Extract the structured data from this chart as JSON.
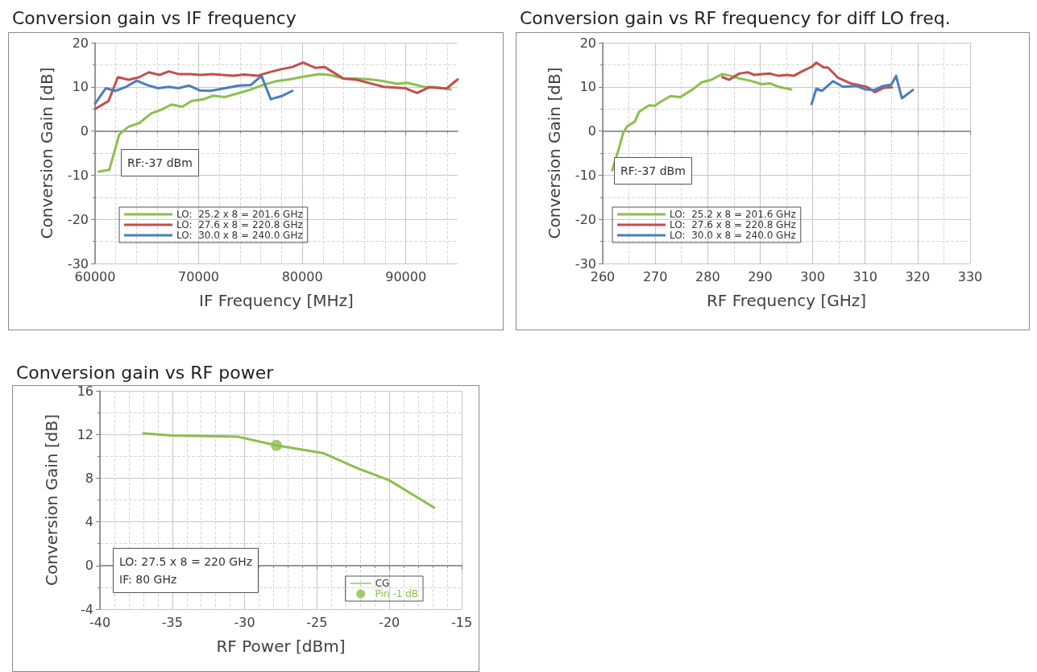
{
  "chart_data": [
    {
      "type": "line",
      "title": "Conversion gain vs IF frequency",
      "xlabel": "IF Frequency [MHz]",
      "ylabel": "Conversion Gain [dB]",
      "annotations": [
        "RF:-37 dBm"
      ],
      "xlim": [
        60000,
        95000
      ],
      "xticks": [
        60000,
        70000,
        80000,
        90000
      ],
      "ylim": [
        -30,
        20
      ],
      "yticks": [
        -30,
        -20,
        -10,
        0,
        10,
        20
      ],
      "grid": true,
      "legend": "bottom left",
      "marker": "none",
      "line_style": "solid",
      "series": [
        {
          "name": "LO:  25.2 x 8 = 201.6 GHz",
          "color": "#8cbf4e",
          "x": [
            60340,
            61370,
            62330,
            63240,
            64270,
            65440,
            66350,
            67380,
            68420,
            69330,
            70490,
            71400,
            72560,
            73730,
            74900,
            76190,
            77490,
            78780,
            80080,
            81630,
            82670,
            83960,
            85250,
            86550,
            87850,
            89140,
            90180,
            91740,
            93030,
            94330
          ],
          "values": [
            -9.2,
            -8.8,
            -0.8,
            1.0,
            1.8,
            4.0,
            4.8,
            6.0,
            5.5,
            6.8,
            7.2,
            8.0,
            7.7,
            8.5,
            9.3,
            10.4,
            11.3,
            11.7,
            12.3,
            12.9,
            12.7,
            11.9,
            11.9,
            11.7,
            11.3,
            10.7,
            10.9,
            10.0,
            9.9,
            9.4
          ]
        },
        {
          "name": "LO:  27.6 x 8 = 220.8 GHz",
          "color": "#c0504d",
          "x": [
            60000,
            61300,
            62200,
            63240,
            64270,
            65180,
            66220,
            67120,
            68040,
            69200,
            70230,
            71270,
            72300,
            73340,
            74380,
            75670,
            76970,
            78000,
            79040,
            80080,
            81240,
            82150,
            83960,
            85250,
            86550,
            87850,
            89920,
            91090,
            92230,
            93910,
            95000
          ],
          "values": [
            5.0,
            6.8,
            12.2,
            11.6,
            12.2,
            13.3,
            12.7,
            13.5,
            12.9,
            12.9,
            12.7,
            12.9,
            12.7,
            12.5,
            12.8,
            12.5,
            13.4,
            14.0,
            14.5,
            15.5,
            14.3,
            14.5,
            11.9,
            11.6,
            10.8,
            10.0,
            9.7,
            8.6,
            9.9,
            9.6,
            11.7
          ]
        },
        {
          "name": "LO:  30.0 x 8 = 240.0 GHz",
          "color": "#4a7ebb",
          "x": [
            60000,
            61040,
            61950,
            62990,
            64020,
            65050,
            66090,
            67120,
            68040,
            69070,
            70100,
            71140,
            72300,
            73860,
            75020,
            76060,
            76960,
            78000,
            79040
          ],
          "values": [
            6.2,
            9.7,
            9.1,
            10.0,
            11.4,
            10.4,
            9.7,
            10.0,
            9.7,
            10.3,
            9.2,
            9.1,
            9.6,
            10.3,
            10.4,
            12.5,
            7.2,
            7.9,
            9.1
          ]
        }
      ]
    },
    {
      "type": "line",
      "title": "Conversion gain vs RF frequency for diff LO freq.",
      "xlabel": "RF Frequency [GHz]",
      "ylabel": "Conversion Gain [dB]",
      "annotations": [
        "RF:-37 dBm"
      ],
      "xlim": [
        260,
        330
      ],
      "xticks": [
        260,
        270,
        280,
        290,
        300,
        310,
        320,
        330
      ],
      "ylim": [
        -30,
        20
      ],
      "yticks": [
        -30,
        -20,
        -10,
        0,
        10,
        20
      ],
      "grid": true,
      "legend": "bottom left",
      "marker": "none",
      "line_style": "solid",
      "series": [
        {
          "name": "LO:  25.2 x 8 = 201.6 GHz",
          "color": "#8cbf4e",
          "x": [
            261.8,
            263.1,
            263.9,
            264.7,
            266.1,
            266.9,
            268.8,
            269.9,
            271.0,
            272.9,
            274.8,
            277.0,
            278.8,
            280.7,
            282.8,
            284.4,
            286.0,
            288.1,
            290.3,
            291.9,
            293.5,
            295.9
          ],
          "values": [
            -8.9,
            -3.9,
            -0.4,
            1.1,
            2.1,
            4.3,
            5.8,
            5.7,
            6.6,
            7.9,
            7.7,
            9.3,
            11.0,
            11.6,
            12.9,
            12.5,
            11.9,
            11.4,
            10.6,
            10.8,
            10.0,
            9.4
          ]
        },
        {
          "name": "LO:  27.6 x 8 = 220.8 GHz",
          "color": "#c0504d",
          "x": [
            282.8,
            284.1,
            286.0,
            287.6,
            288.9,
            290.3,
            291.9,
            293.5,
            295.1,
            296.4,
            298.1,
            299.9,
            300.7,
            302.1,
            302.9,
            304.8,
            307.2,
            310.3,
            311.9,
            313.5,
            315.1
          ],
          "values": [
            12.2,
            11.6,
            13.0,
            13.3,
            12.7,
            12.9,
            13.0,
            12.5,
            12.7,
            12.5,
            13.6,
            14.6,
            15.5,
            14.4,
            14.4,
            12.1,
            10.8,
            10.0,
            8.8,
            9.8,
            9.9
          ]
        },
        {
          "name": "LO:  30.0 x 8 = 240.0 GHz",
          "color": "#4a7ebb",
          "x": [
            299.8,
            300.7,
            301.8,
            303.9,
            305.8,
            308.3,
            310.1,
            311.8,
            313.4,
            315.0,
            315.9,
            317.0,
            319.1
          ],
          "values": [
            6.1,
            9.6,
            9.1,
            11.3,
            10.0,
            10.2,
            9.4,
            9.3,
            10.2,
            10.5,
            12.5,
            7.4,
            9.3
          ]
        }
      ]
    },
    {
      "type": "line",
      "title": "Conversion gain vs RF power",
      "xlabel": "RF Power [dBm]",
      "ylabel": "Conversion Gain [dB]",
      "annotations": [
        "LO: 27.5 x 8 = 220 GHz",
        "IF: 80 GHz"
      ],
      "xlim": [
        -40,
        -15
      ],
      "xticks": [
        -40,
        -35,
        -30,
        -25,
        -20,
        -15
      ],
      "ylim": [
        -4,
        16
      ],
      "yticks": [
        -4,
        0,
        4,
        8,
        12,
        16
      ],
      "grid": true,
      "legend": "bottom right",
      "marker": "none",
      "line_style": "solid",
      "series": [
        {
          "name": "CG",
          "color": "#8cbf4e",
          "x": [
            -37.0,
            -35.0,
            -30.5,
            -27.8,
            -24.6,
            -22.2,
            -20.0,
            -16.9
          ],
          "values": [
            12.1,
            11.9,
            11.8,
            11.0,
            10.3,
            8.9,
            7.8,
            5.3
          ]
        },
        {
          "name": "Pin -1 dB",
          "type": "scatter",
          "marker": "circle",
          "color": "#8cbf4e",
          "x": [
            -27.8
          ],
          "values": [
            11.0
          ]
        }
      ]
    }
  ]
}
